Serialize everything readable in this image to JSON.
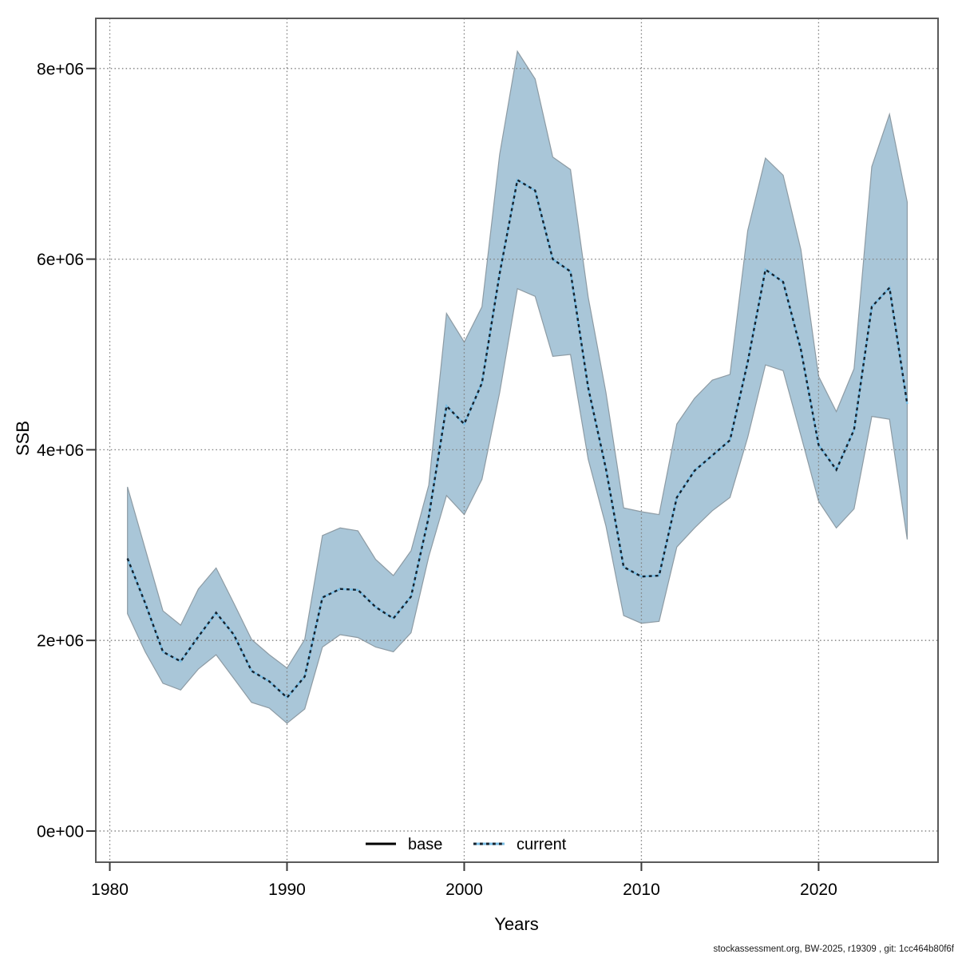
{
  "figure": {
    "footer": "stockassessment.org, BW-2025, r19309 , git: 1cc464b80f6f"
  },
  "chart_data": {
    "type": "line",
    "title": "",
    "xlabel": "Years",
    "ylabel": "SSB",
    "grid": true,
    "xlim": [
      1979.21,
      2026.74
    ],
    "ylim": [
      -327000,
      8526000
    ],
    "x_ticks": [
      1980,
      1990,
      2000,
      2010,
      2020
    ],
    "x_tick_labels": [
      "1980",
      "1990",
      "2000",
      "2010",
      "2020"
    ],
    "y_ticks": [
      0,
      2000000,
      4000000,
      6000000,
      8000000
    ],
    "y_tick_labels": [
      "0e+00",
      "2e+06",
      "4e+06",
      "6e+06",
      "8e+06"
    ],
    "legend": [
      {
        "label": "base",
        "style": "solid"
      },
      {
        "label": "current",
        "style": "dotted"
      }
    ],
    "x": [
      1981,
      1982,
      1983,
      1984,
      1985,
      1986,
      1987,
      1988,
      1989,
      1990,
      1991,
      1992,
      1993,
      1994,
      1995,
      1996,
      1997,
      1998,
      1999,
      2000,
      2001,
      2002,
      2003,
      2004,
      2005,
      2006,
      2007,
      2008,
      2009,
      2010,
      2011,
      2012,
      2013,
      2014,
      2015,
      2016,
      2017,
      2018,
      2019,
      2020,
      2021,
      2022,
      2023,
      2024,
      2025
    ],
    "series": [
      {
        "name": "current",
        "values": [
          2860000,
          2390000,
          1880000,
          1780000,
          2040000,
          2290000,
          2060000,
          1680000,
          1570000,
          1400000,
          1620000,
          2450000,
          2540000,
          2530000,
          2350000,
          2230000,
          2460000,
          3300000,
          4460000,
          4270000,
          4700000,
          5850000,
          6830000,
          6720000,
          6000000,
          5870000,
          4650000,
          3800000,
          2770000,
          2670000,
          2680000,
          3500000,
          3780000,
          3940000,
          4100000,
          4920000,
          5890000,
          5760000,
          5050000,
          4050000,
          3790000,
          4210000,
          5500000,
          5700000,
          4480000
        ]
      }
    ],
    "band": {
      "name": "current confidence interval",
      "upper": [
        3610000,
        2960000,
        2310000,
        2160000,
        2540000,
        2760000,
        2390000,
        2010000,
        1850000,
        1710000,
        2010000,
        3100000,
        3180000,
        3150000,
        2850000,
        2680000,
        2940000,
        3630000,
        5430000,
        5130000,
        5500000,
        7100000,
        8180000,
        7890000,
        7070000,
        6940000,
        5600000,
        4600000,
        3390000,
        3350000,
        3320000,
        4270000,
        4540000,
        4730000,
        4790000,
        6300000,
        7060000,
        6880000,
        6100000,
        4770000,
        4400000,
        4850000,
        6970000,
        7520000,
        6600000
      ],
      "lower": [
        2280000,
        1880000,
        1550000,
        1480000,
        1700000,
        1850000,
        1600000,
        1350000,
        1290000,
        1130000,
        1280000,
        1930000,
        2060000,
        2030000,
        1930000,
        1880000,
        2080000,
        2880000,
        3520000,
        3320000,
        3690000,
        4600000,
        5690000,
        5610000,
        4980000,
        5000000,
        3900000,
        3200000,
        2260000,
        2180000,
        2200000,
        2980000,
        3180000,
        3360000,
        3500000,
        4130000,
        4890000,
        4830000,
        4150000,
        3460000,
        3180000,
        3380000,
        4350000,
        4320000,
        3060000
      ]
    },
    "colors": {
      "band_fill": "#a9c6d8",
      "band_edge": "#8d9ba4",
      "line_underlay": "#79bde4",
      "line_dash": "#14222e",
      "base_line": "#000000",
      "grid": "#7d7d7d",
      "border": "#5a5a5a",
      "tick": "#3a3a3a"
    }
  }
}
